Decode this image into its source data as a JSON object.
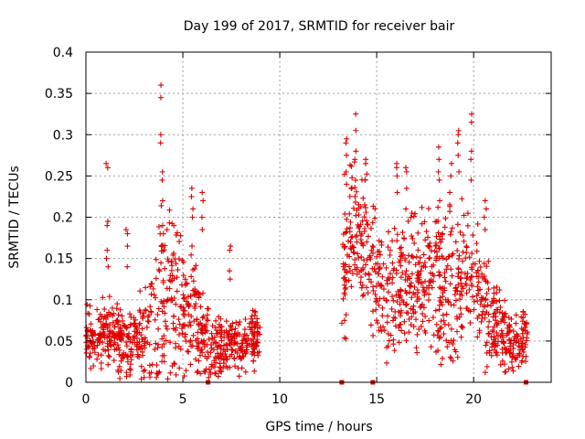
{
  "chart_data": {
    "type": "scatter",
    "title": "Day 199 of 2017, SRMTID for receiver bair",
    "xlabel": "GPS time / hours",
    "ylabel": "SRMTID / TECUs",
    "xlim": [
      0,
      24
    ],
    "ylim": [
      0,
      0.4
    ],
    "x_ticks": [
      0,
      5,
      10,
      15,
      20
    ],
    "x_tick_labels": [
      "0",
      "5",
      "10",
      "15",
      "20"
    ],
    "y_ticks": [
      0,
      0.05,
      0.1,
      0.15,
      0.2,
      0.25,
      0.3,
      0.35,
      0.4
    ],
    "y_tick_labels": [
      "0",
      "0.05",
      "0.1",
      "0.15",
      "0.2",
      "0.25",
      "0.3",
      "0.35",
      "0.4"
    ],
    "grid": true,
    "marker": "+",
    "color": "#e00000",
    "series": [
      {
        "name": "SRMTID",
        "segments": [
          {
            "x_range": [
              0,
              9
            ],
            "profile": [
              [
                0,
                0.055
              ],
              [
                0.5,
                0.05
              ],
              [
                1,
                0.06
              ],
              [
                1.5,
                0.05
              ],
              [
                2,
                0.045
              ],
              [
                2.5,
                0.05
              ],
              [
                3,
                0.045
              ],
              [
                3.5,
                0.07
              ],
              [
                4,
                0.11
              ],
              [
                4.5,
                0.11
              ],
              [
                5,
                0.095
              ],
              [
                5.5,
                0.085
              ],
              [
                6,
                0.06
              ],
              [
                6.3,
                0.045
              ],
              [
                7,
                0.04
              ],
              [
                7.5,
                0.045
              ],
              [
                8,
                0.04
              ],
              [
                8.5,
                0.055
              ],
              [
                9,
                0.06
              ]
            ],
            "spread": [
              [
                0,
                0.03
              ],
              [
                1,
                0.04
              ],
              [
                2,
                0.04
              ],
              [
                3,
                0.05
              ],
              [
                3.5,
                0.07
              ],
              [
                4,
                0.1
              ],
              [
                5,
                0.08
              ],
              [
                6,
                0.05
              ],
              [
                7,
                0.03
              ],
              [
                8,
                0.03
              ],
              [
                9,
                0.03
              ]
            ]
          },
          {
            "x_range": [
              13.2,
              22.8
            ],
            "profile": [
              [
                13.2,
                0.13
              ],
              [
                13.5,
                0.16
              ],
              [
                14,
                0.18
              ],
              [
                14.5,
                0.15
              ],
              [
                15,
                0.12
              ],
              [
                15.5,
                0.1
              ],
              [
                16,
                0.11
              ],
              [
                16.5,
                0.12
              ],
              [
                17,
                0.12
              ],
              [
                17.5,
                0.12
              ],
              [
                18,
                0.13
              ],
              [
                18.5,
                0.11
              ],
              [
                19,
                0.12
              ],
              [
                19.5,
                0.12
              ],
              [
                20,
                0.12
              ],
              [
                20.5,
                0.1
              ],
              [
                21,
                0.07
              ],
              [
                21.5,
                0.06
              ],
              [
                22,
                0.05
              ],
              [
                22.5,
                0.05
              ],
              [
                22.8,
                0.06
              ]
            ],
            "spread": [
              [
                13.2,
                0.08
              ],
              [
                14,
                0.09
              ],
              [
                15,
                0.07
              ],
              [
                16,
                0.08
              ],
              [
                17,
                0.07
              ],
              [
                18,
                0.08
              ],
              [
                19,
                0.08
              ],
              [
                20,
                0.08
              ],
              [
                21,
                0.05
              ],
              [
                22,
                0.03
              ],
              [
                22.8,
                0.03
              ]
            ]
          }
        ],
        "spikes": [
          {
            "x": 1.1,
            "values": [
              0.26,
              0.265,
              0.195,
              0.19,
              0.16,
              0.15,
              0.14
            ]
          },
          {
            "x": 2.1,
            "values": [
              0.185,
              0.18,
              0.165,
              0.14
            ]
          },
          {
            "x": 3.9,
            "values": [
              0.36,
              0.345,
              0.3,
              0.29,
              0.255,
              0.245,
              0.22,
              0.19
            ]
          },
          {
            "x": 5.5,
            "values": [
              0.235,
              0.225,
              0.21,
              0.2,
              0.165
            ]
          },
          {
            "x": 6.0,
            "values": [
              0.23,
              0.22,
              0.2,
              0.185
            ]
          },
          {
            "x": 7.4,
            "values": [
              0.165,
              0.16,
              0.135,
              0.125
            ]
          },
          {
            "x": 13.4,
            "values": [
              0.295,
              0.29,
              0.275,
              0.255,
              0.24
            ]
          },
          {
            "x": 13.9,
            "values": [
              0.325,
              0.305,
              0.28,
              0.27,
              0.245,
              0.225
            ]
          },
          {
            "x": 14.4,
            "values": [
              0.27,
              0.265,
              0.245,
              0.215
            ]
          },
          {
            "x": 16.0,
            "values": [
              0.265,
              0.26,
              0.25,
              0.23
            ]
          },
          {
            "x": 16.5,
            "values": [
              0.26,
              0.255,
              0.235,
              0.21
            ]
          },
          {
            "x": 18.2,
            "values": [
              0.285,
              0.27,
              0.255,
              0.245,
              0.22
            ]
          },
          {
            "x": 18.8,
            "values": [
              0.265,
              0.25,
              0.23,
              0.215
            ]
          },
          {
            "x": 19.2,
            "values": [
              0.305,
              0.3,
              0.29,
              0.275,
              0.255
            ]
          },
          {
            "x": 19.9,
            "values": [
              0.325,
              0.315,
              0.28,
              0.27,
              0.245
            ]
          },
          {
            "x": 20.6,
            "values": [
              0.22,
              0.21,
              0.2,
              0.185
            ]
          }
        ]
      }
    ],
    "zero_markers": [
      6.3,
      13.2,
      14.8,
      22.7
    ]
  }
}
